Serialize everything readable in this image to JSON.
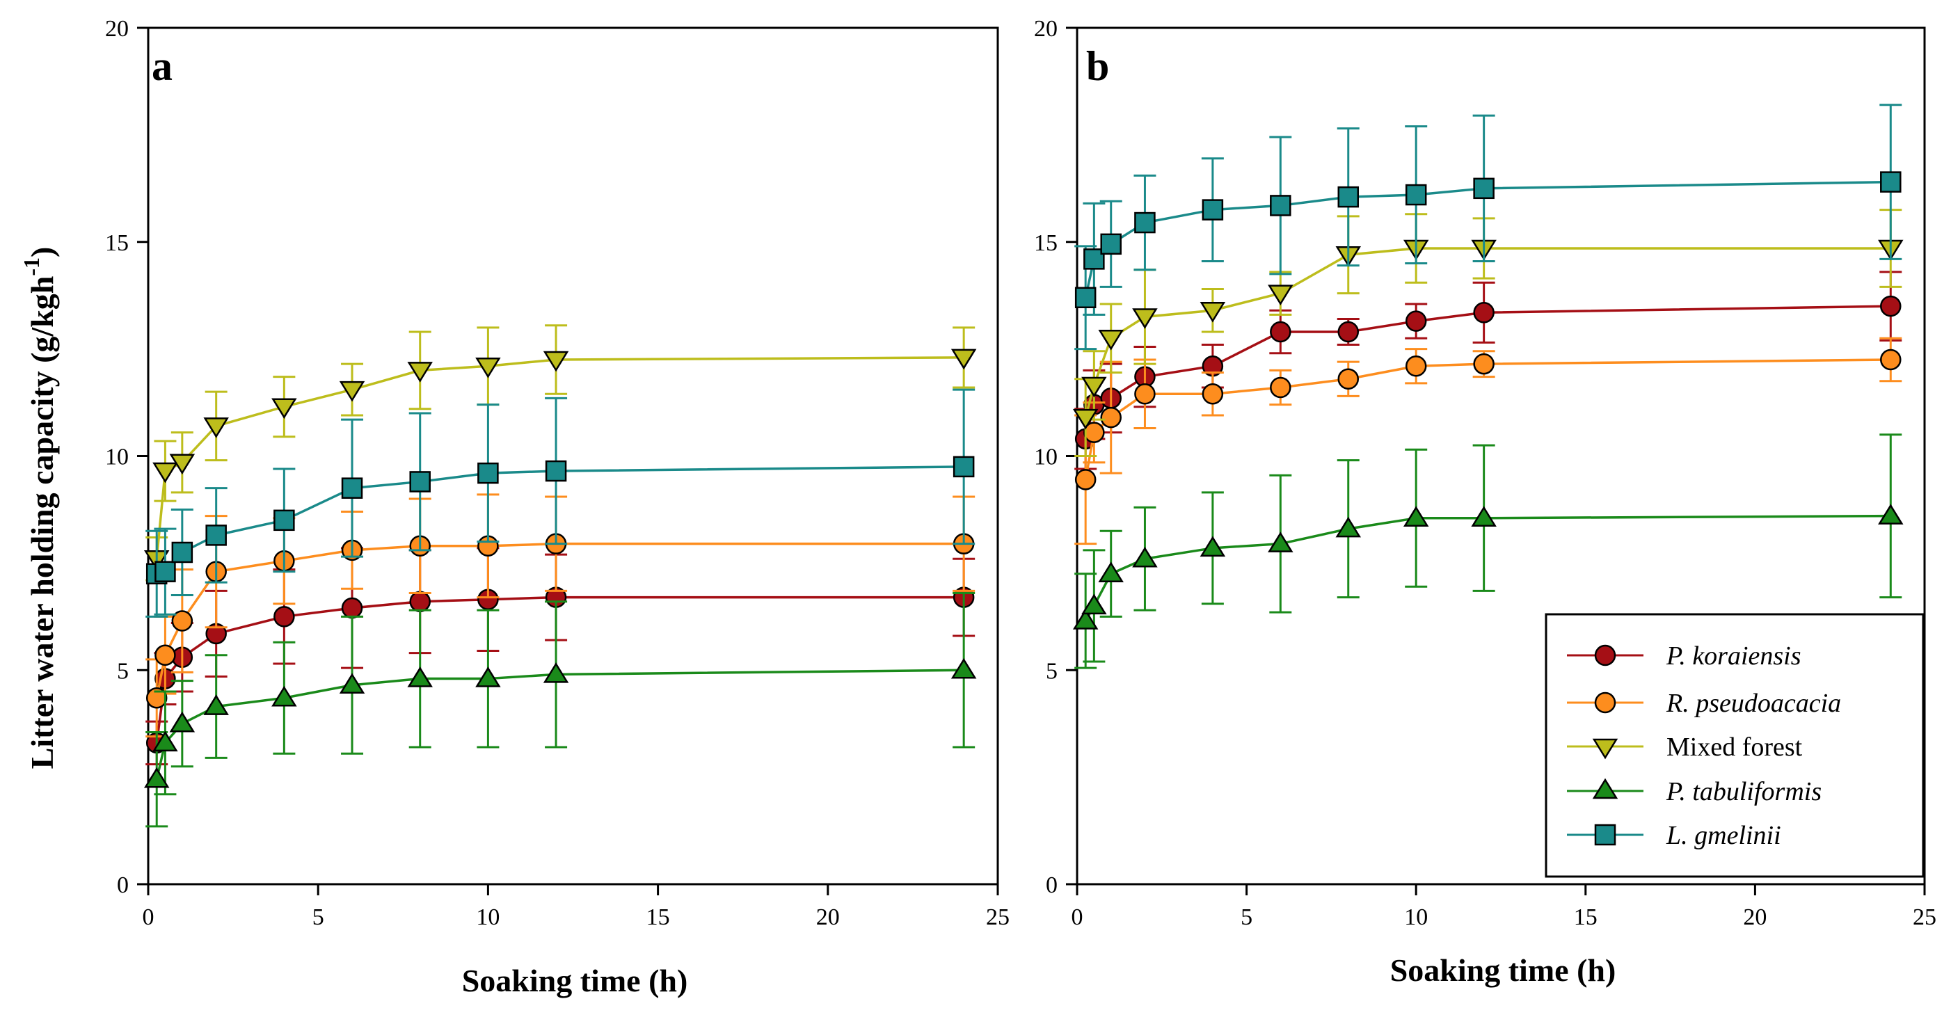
{
  "chart_data": [
    {
      "type": "line",
      "panel_label": "a",
      "xlabel": "Soaking time (h)",
      "ylabel": "Litter water holding capacity (g/kgh",
      "ylabel_sup": "-1",
      "ylabel_close": ")",
      "xlim": [
        0,
        25
      ],
      "ylim": [
        0,
        20
      ],
      "xticks": [
        "0",
        "5",
        "10",
        "15",
        "20",
        "25"
      ],
      "yticks": [
        "0",
        "5",
        "10",
        "15",
        "20"
      ],
      "x": [
        0.25,
        0.5,
        1,
        2,
        4,
        6,
        8,
        10,
        12,
        24
      ],
      "series": [
        {
          "name": "P. koraiensis",
          "color": "#a50f15",
          "marker": "circle",
          "values": [
            3.3,
            4.8,
            5.3,
            5.85,
            6.25,
            6.45,
            6.6,
            6.65,
            6.7,
            6.7
          ],
          "err": [
            0.5,
            0.6,
            0.8,
            1.0,
            1.1,
            1.4,
            1.2,
            1.2,
            1.0,
            0.9
          ]
        },
        {
          "name": "R. pseudoacacia",
          "color": "#fd8d1e",
          "marker": "circle",
          "values": [
            4.35,
            5.35,
            6.15,
            7.3,
            7.55,
            7.8,
            7.9,
            7.9,
            7.95,
            7.95
          ],
          "err": [
            0.9,
            0.9,
            1.2,
            1.3,
            1.0,
            0.9,
            1.1,
            1.2,
            1.1,
            1.1
          ]
        },
        {
          "name": "Mixed forest",
          "color": "#bdbd1c",
          "marker": "triangle-down",
          "values": [
            7.6,
            9.65,
            9.85,
            10.7,
            11.15,
            11.55,
            12.0,
            12.1,
            12.25,
            12.3
          ],
          "err": [
            0.5,
            0.7,
            0.7,
            0.8,
            0.7,
            0.6,
            0.9,
            0.9,
            0.8,
            0.7
          ]
        },
        {
          "name": "P. tabuliformis",
          "color": "#1a8a1a",
          "marker": "triangle-up",
          "values": [
            2.45,
            3.3,
            3.75,
            4.15,
            4.35,
            4.65,
            4.8,
            4.8,
            4.9,
            5.0
          ],
          "err": [
            1.1,
            1.2,
            1.0,
            1.2,
            1.3,
            1.6,
            1.6,
            1.6,
            1.7,
            1.8
          ]
        },
        {
          "name": "L. gmelinii",
          "color": "#1a8a8a",
          "marker": "square",
          "values": [
            7.25,
            7.3,
            7.75,
            8.15,
            8.5,
            9.25,
            9.4,
            9.6,
            9.65,
            9.75
          ],
          "err": [
            1.0,
            1.0,
            1.0,
            1.1,
            1.2,
            1.6,
            1.6,
            1.6,
            1.7,
            1.8
          ]
        }
      ]
    },
    {
      "type": "line",
      "panel_label": "b",
      "xlabel": "Soaking time (h)",
      "xlim": [
        0,
        25
      ],
      "ylim": [
        0,
        20
      ],
      "xticks": [
        "0",
        "5",
        "10",
        "15",
        "20",
        "25"
      ],
      "yticks": [
        "0",
        "5",
        "10",
        "15",
        "20"
      ],
      "x": [
        0.25,
        0.5,
        1,
        2,
        4,
        6,
        8,
        10,
        12,
        24
      ],
      "series": [
        {
          "name": "P. koraiensis",
          "color": "#a50f15",
          "marker": "circle",
          "values": [
            10.4,
            11.2,
            11.35,
            11.85,
            12.1,
            12.9,
            12.9,
            13.15,
            13.35,
            13.5
          ],
          "err": [
            0.7,
            0.8,
            0.8,
            0.7,
            0.5,
            0.5,
            0.3,
            0.4,
            0.7,
            0.8
          ]
        },
        {
          "name": "R. pseudoacacia",
          "color": "#fd8d1e",
          "marker": "circle",
          "values": [
            9.45,
            10.55,
            10.9,
            11.45,
            11.45,
            11.6,
            11.8,
            12.1,
            12.15,
            12.25
          ],
          "err": [
            1.5,
            0.7,
            1.3,
            0.8,
            0.5,
            0.4,
            0.4,
            0.4,
            0.3,
            0.5
          ]
        },
        {
          "name": "Mixed forest",
          "color": "#bdbd1c",
          "marker": "triangle-down",
          "values": [
            10.9,
            11.65,
            12.75,
            13.25,
            13.4,
            13.8,
            14.7,
            14.85,
            14.85,
            14.85
          ],
          "err": [
            0.9,
            0.8,
            0.8,
            1.1,
            0.5,
            0.5,
            0.9,
            0.8,
            0.7,
            0.9
          ]
        },
        {
          "name": "P. tabuliformis",
          "color": "#1a8a1a",
          "marker": "triangle-up",
          "values": [
            6.15,
            6.5,
            7.25,
            7.6,
            7.85,
            7.95,
            8.3,
            8.55,
            8.55,
            8.6
          ],
          "err": [
            1.1,
            1.3,
            1.0,
            1.2,
            1.3,
            1.6,
            1.6,
            1.6,
            1.7,
            1.9
          ]
        },
        {
          "name": "L. gmelinii",
          "color": "#1a8a8a",
          "marker": "square",
          "values": [
            13.7,
            14.6,
            14.95,
            15.45,
            15.75,
            15.85,
            16.05,
            16.1,
            16.25,
            16.4
          ],
          "err": [
            1.2,
            1.3,
            1.0,
            1.1,
            1.2,
            1.6,
            1.6,
            1.6,
            1.7,
            1.8
          ]
        }
      ]
    }
  ],
  "legend": {
    "position": "bottom-right of panel b",
    "entries": [
      {
        "label": "P. koraiensis",
        "italic": true
      },
      {
        "label": "R. pseudoacacia",
        "italic": true
      },
      {
        "label": "Mixed forest",
        "italic": false
      },
      {
        "label": "P. tabuliformis",
        "italic": true
      },
      {
        "label": "L. gmelinii",
        "italic": true
      }
    ]
  }
}
